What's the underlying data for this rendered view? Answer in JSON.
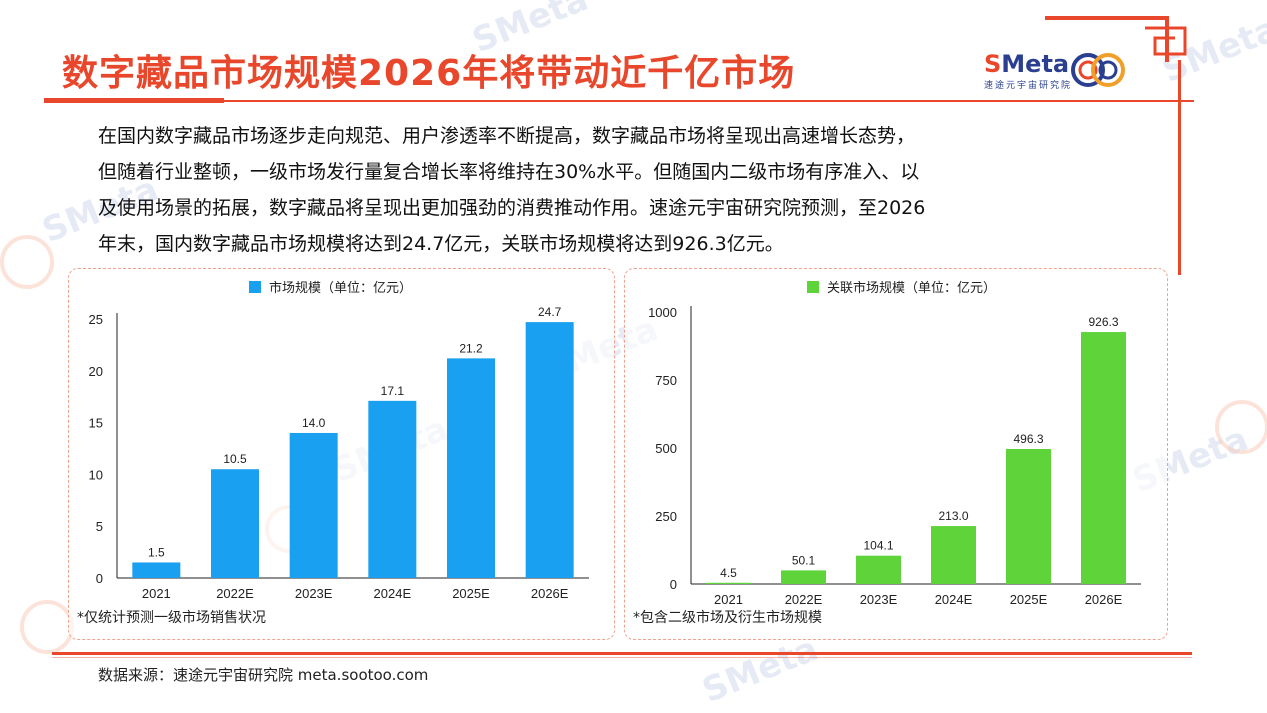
{
  "title": "数字藏品市场规模2026年将带动近千亿市场",
  "logo": {
    "brand_s": "S",
    "brand_rest": "Meta",
    "sub": "速途元宇宙研究院"
  },
  "body_lines": [
    "在国内数字藏品市场逐步走向规范、用户渗透率不断提高，数字藏品市场将呈现出高速增长态势，",
    "但随着行业整顿，一级市场发行量复合增长率将维持在30%水平。但随国内二级市场有序准入、以",
    "及使用场景的拓展，数字藏品将呈现出更加强劲的消费推动作用。速途元宇宙研究院预测，至2026",
    "年末，国内数字藏品市场规模将达到24.7亿元，关联市场规模将达到926.3亿元。"
  ],
  "watermark_text": "SMeta",
  "watermark_sub": "速途元宇宙研究院",
  "colors": {
    "accent": "#e8472b",
    "blue": "#1aa0f0",
    "green": "#5ed43a",
    "logo_blue": "#2a3f8f"
  },
  "left_note": "*仅统计预测一级市场销售状况",
  "right_note": "*包含二级市场及衍生市场规模",
  "source": "数据来源：速途元宇宙研究院 meta.sootoo.com",
  "chart_data": [
    {
      "type": "bar",
      "categories": [
        "2021",
        "2022E",
        "2023E",
        "2024E",
        "2025E",
        "2026E"
      ],
      "series": [
        {
          "name": "市场规模（单位：亿元）",
          "values": [
            1.5,
            10.5,
            14.0,
            17.1,
            21.2,
            24.7
          ],
          "labels": [
            "1.5",
            "10.5",
            "14.0",
            "17.1",
            "21.2",
            "24.7"
          ]
        }
      ],
      "ylim": [
        0,
        25
      ],
      "yticks": [
        "0",
        "5",
        "10",
        "15",
        "20",
        "25"
      ],
      "color": "#1aa0f0",
      "grid": false,
      "legend": "top-center"
    },
    {
      "type": "bar",
      "categories": [
        "2021",
        "2022E",
        "2023E",
        "2024E",
        "2025E",
        "2026E"
      ],
      "series": [
        {
          "name": "关联市场规模（单位：亿元）",
          "values": [
            4.5,
            50.1,
            104.1,
            213.0,
            496.3,
            926.3
          ],
          "labels": [
            "4.5",
            "50.1",
            "104.1",
            "213.0",
            "496.3",
            "926.3"
          ]
        }
      ],
      "ylim": [
        0,
        1000
      ],
      "yticks": [
        "0",
        "250",
        "500",
        "750",
        "1000"
      ],
      "color": "#5ed43a",
      "grid": false,
      "legend": "top-center"
    }
  ]
}
